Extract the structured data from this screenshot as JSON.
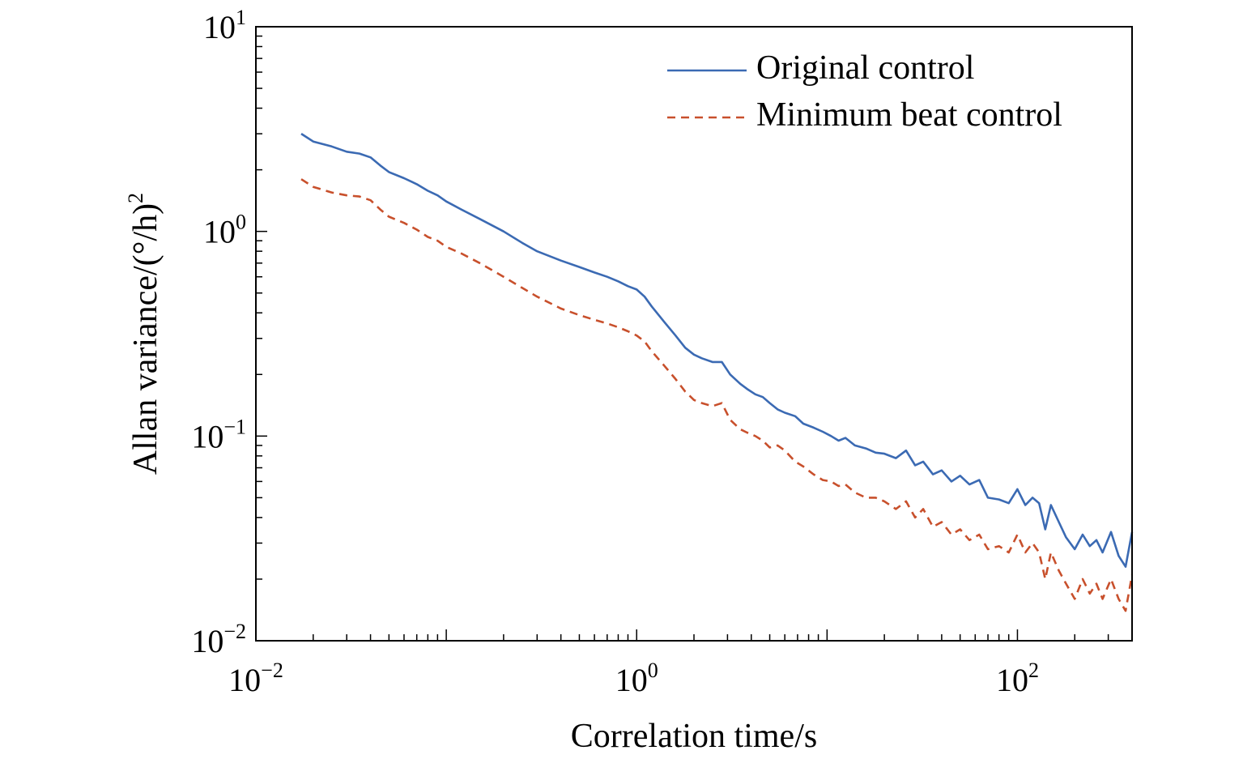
{
  "chart_data": {
    "type": "line",
    "xlabel": "Correlation time/s",
    "ylabel": "Allan variance/(°/h)²",
    "x_scale": "log",
    "y_scale": "log",
    "xlim": [
      0.01,
      400
    ],
    "ylim": [
      0.01,
      10
    ],
    "grid": false,
    "legend_position": "top-right",
    "x_ticks": [
      {
        "base": "10",
        "exp": "−2",
        "value": 0.01
      },
      {
        "base": "10",
        "exp": "0",
        "value": 1
      },
      {
        "base": "10",
        "exp": "2",
        "value": 100
      }
    ],
    "y_ticks": [
      {
        "base": "10",
        "exp": "−2",
        "value": 0.01
      },
      {
        "base": "10",
        "exp": "−1",
        "value": 0.1
      },
      {
        "base": "10",
        "exp": "0",
        "value": 1
      },
      {
        "base": "10",
        "exp": "1",
        "value": 10
      }
    ],
    "series": [
      {
        "name": "Original control",
        "color": "#3b6ab3",
        "dash": "solid",
        "x": [
          0.0173,
          0.02,
          0.025,
          0.03,
          0.035,
          0.04,
          0.045,
          0.05,
          0.06,
          0.07,
          0.08,
          0.09,
          0.1,
          0.12,
          0.15,
          0.2,
          0.25,
          0.3,
          0.4,
          0.5,
          0.6,
          0.7,
          0.8,
          0.9,
          1.0,
          1.1,
          1.2,
          1.4,
          1.6,
          1.8,
          2.0,
          2.2,
          2.5,
          2.8,
          3.1,
          3.5,
          3.8,
          4.2,
          4.6,
          5.0,
          5.5,
          6.0,
          6.8,
          7.5,
          8.5,
          9.5,
          10.5,
          11.5,
          12.5,
          14,
          16,
          18,
          20,
          23,
          26,
          29,
          32,
          36,
          40,
          45,
          50,
          56,
          63,
          70,
          80,
          90,
          100,
          110,
          120,
          130,
          140,
          150,
          165,
          180,
          200,
          220,
          240,
          260,
          280,
          310,
          340,
          370,
          400
        ],
        "y": [
          3.0,
          2.75,
          2.6,
          2.45,
          2.4,
          2.3,
          2.1,
          1.95,
          1.82,
          1.7,
          1.58,
          1.5,
          1.4,
          1.28,
          1.15,
          1.0,
          0.88,
          0.8,
          0.72,
          0.67,
          0.63,
          0.6,
          0.57,
          0.54,
          0.52,
          0.48,
          0.43,
          0.36,
          0.31,
          0.27,
          0.25,
          0.24,
          0.23,
          0.23,
          0.2,
          0.18,
          0.17,
          0.16,
          0.155,
          0.145,
          0.135,
          0.13,
          0.125,
          0.115,
          0.11,
          0.105,
          0.1,
          0.095,
          0.098,
          0.09,
          0.087,
          0.083,
          0.082,
          0.078,
          0.085,
          0.072,
          0.075,
          0.065,
          0.068,
          0.06,
          0.064,
          0.058,
          0.061,
          0.05,
          0.049,
          0.047,
          0.055,
          0.046,
          0.05,
          0.047,
          0.035,
          0.046,
          0.038,
          0.032,
          0.028,
          0.033,
          0.029,
          0.031,
          0.027,
          0.034,
          0.026,
          0.023,
          0.034
        ],
        "label_key": "legend.original"
      },
      {
        "name": "Minimum beat control",
        "color": "#c8502c",
        "dash": "dashed",
        "x": [
          0.0173,
          0.02,
          0.025,
          0.03,
          0.035,
          0.04,
          0.045,
          0.05,
          0.06,
          0.07,
          0.08,
          0.09,
          0.1,
          0.12,
          0.15,
          0.2,
          0.25,
          0.3,
          0.4,
          0.5,
          0.6,
          0.7,
          0.8,
          0.9,
          1.0,
          1.1,
          1.2,
          1.4,
          1.6,
          1.8,
          2.0,
          2.2,
          2.5,
          2.8,
          3.1,
          3.5,
          3.8,
          4.2,
          4.6,
          5.0,
          5.5,
          6.0,
          6.8,
          7.5,
          8.5,
          9.5,
          10.5,
          11.5,
          12.5,
          14,
          16,
          18,
          20,
          23,
          26,
          29,
          32,
          36,
          40,
          45,
          50,
          56,
          63,
          70,
          80,
          90,
          100,
          110,
          120,
          130,
          140,
          150,
          165,
          180,
          200,
          220,
          240,
          260,
          280,
          310,
          340,
          370,
          400
        ],
        "y": [
          1.8,
          1.65,
          1.55,
          1.5,
          1.48,
          1.42,
          1.28,
          1.18,
          1.1,
          1.02,
          0.94,
          0.9,
          0.84,
          0.78,
          0.7,
          0.6,
          0.53,
          0.48,
          0.42,
          0.39,
          0.37,
          0.355,
          0.34,
          0.325,
          0.31,
          0.29,
          0.26,
          0.22,
          0.19,
          0.165,
          0.15,
          0.145,
          0.14,
          0.145,
          0.12,
          0.108,
          0.104,
          0.1,
          0.095,
          0.088,
          0.09,
          0.085,
          0.075,
          0.071,
          0.065,
          0.061,
          0.06,
          0.057,
          0.058,
          0.053,
          0.05,
          0.05,
          0.048,
          0.044,
          0.048,
          0.04,
          0.044,
          0.036,
          0.038,
          0.033,
          0.035,
          0.031,
          0.033,
          0.028,
          0.029,
          0.027,
          0.033,
          0.027,
          0.03,
          0.027,
          0.02,
          0.027,
          0.022,
          0.019,
          0.016,
          0.02,
          0.017,
          0.019,
          0.016,
          0.02,
          0.016,
          0.014,
          0.021
        ],
        "label_key": "legend.minimum"
      }
    ]
  },
  "legend": {
    "original": "Original control",
    "minimum": "Minimum beat control"
  },
  "axes": {
    "xlabel": "Correlation time/s",
    "ylabel_main": "Allan variance/(°/h)",
    "ylabel_sup": "2"
  }
}
